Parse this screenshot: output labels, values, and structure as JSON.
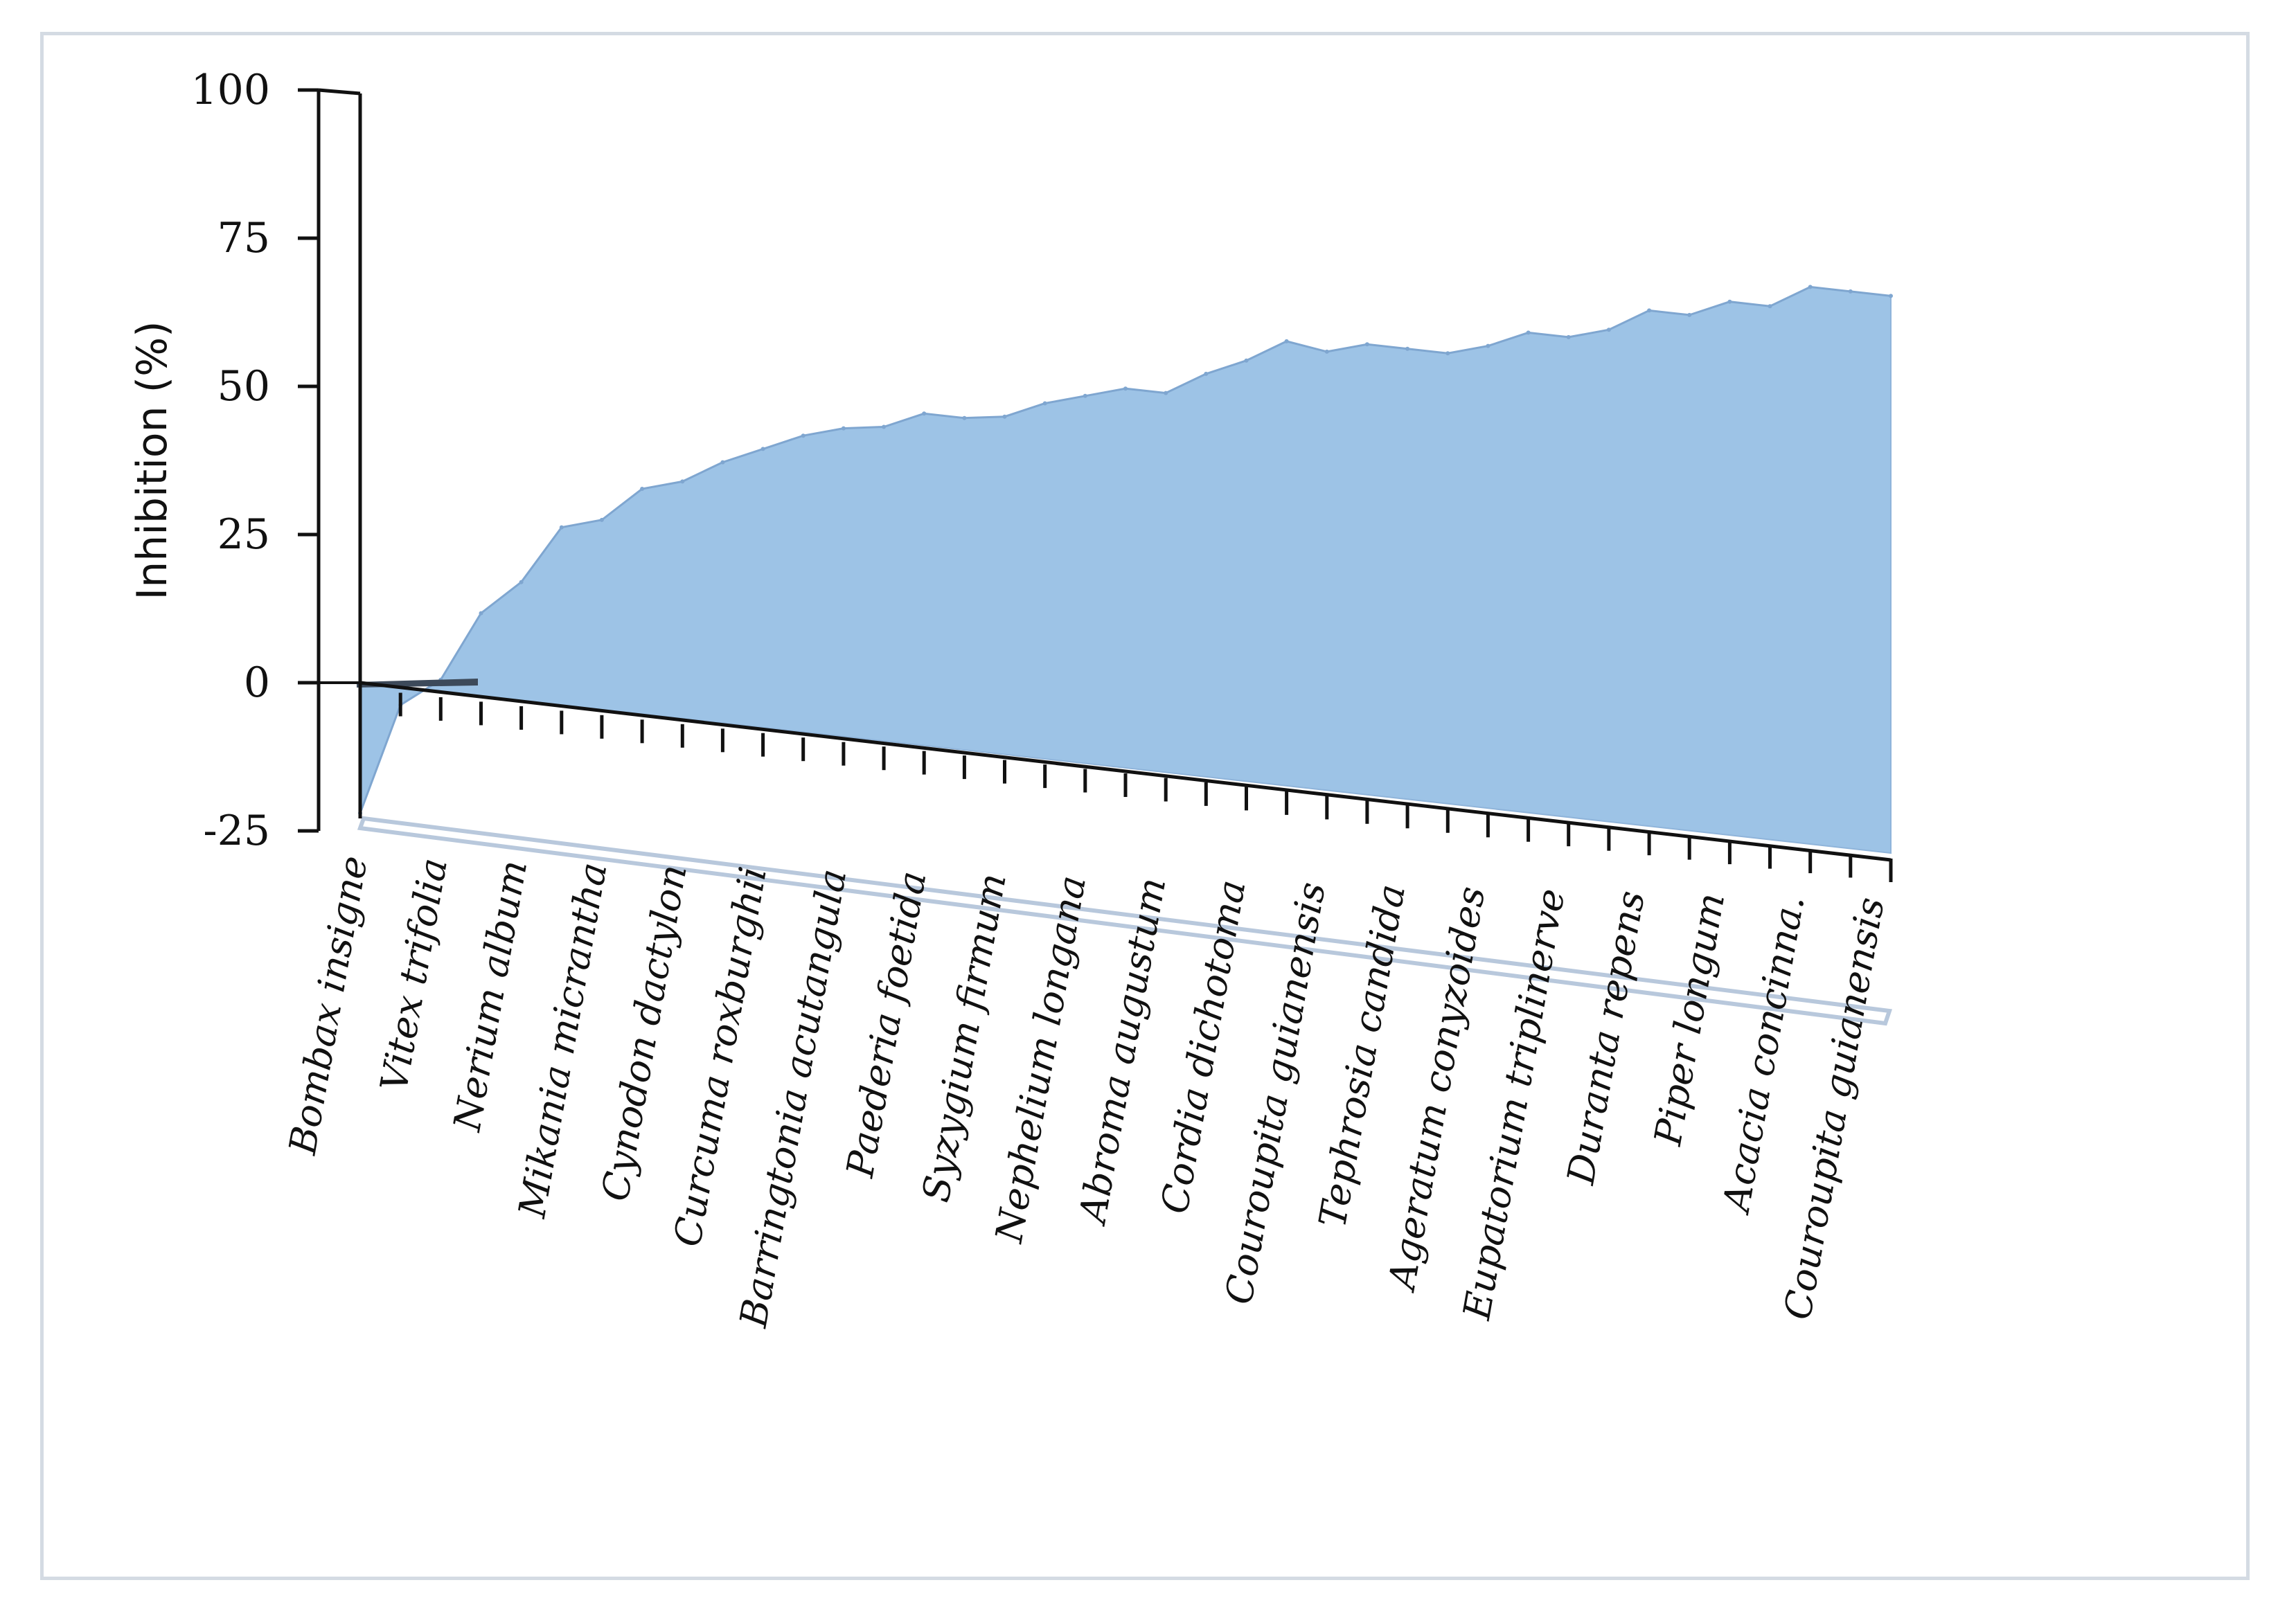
{
  "chart_data": {
    "type": "area",
    "title": "",
    "xlabel": "",
    "ylabel": "Inhibition (%)",
    "ylim": [
      -25,
      100
    ],
    "yticks": [
      "100",
      "75",
      "50",
      "25",
      "0",
      "-25"
    ],
    "yticks_values": [
      100,
      75,
      50,
      25,
      0,
      -25
    ],
    "grid": false,
    "legend": "none",
    "categories": [
      "Bombax insigne",
      "Vitex trifolia",
      "Nerium album",
      "Mikania micrantha",
      "Cynodon dactylon",
      "Curcuma roxburghii",
      "Barringtonia acutangula",
      "Paederia foetida",
      "Syzygium firmum",
      "Nephelium longana",
      "Abroma augustum",
      "Cordia dichotoma",
      "Couroupita guianensis",
      "Tephrosia candida",
      "Ageratum conyzoides",
      "Eupatorium triplinerve",
      "Duranta repens",
      "Piper longum",
      "Acacia concinna.",
      "Couroupita guianensis"
    ],
    "x": [
      1,
      2,
      3,
      4,
      5,
      6,
      7,
      8,
      9,
      10,
      11,
      12,
      13,
      14,
      15,
      16,
      17,
      18,
      19,
      20,
      21,
      22,
      23,
      24,
      25,
      26,
      27,
      28,
      29,
      30,
      31,
      32,
      33,
      34,
      35,
      36,
      37,
      38,
      39
    ],
    "series": [
      {
        "name": "Inhibition",
        "color": "#9dc3e6",
        "values": [
          -22,
          -3,
          2,
          14,
          20,
          30,
          32,
          38,
          40,
          44,
          47,
          50,
          52,
          53,
          56,
          56,
          57,
          60,
          62,
          64,
          64,
          68,
          71,
          75,
          74,
          76,
          76,
          76,
          78,
          81,
          81,
          83,
          87,
          87,
          90,
          90,
          94,
          94,
          94
        ]
      }
    ]
  }
}
